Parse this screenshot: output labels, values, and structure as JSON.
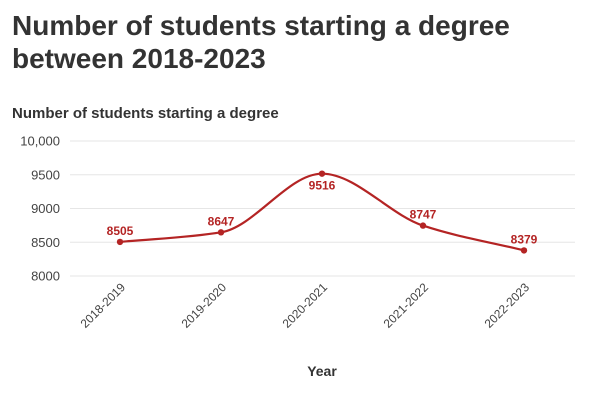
{
  "header": {
    "title": "Number of students starting a degree between 2018-2023",
    "subtitle": "Number of students starting a degree"
  },
  "colors": {
    "series": "#b42424",
    "grid": "#e6e6e6",
    "text": "#333333"
  },
  "chart_data": {
    "type": "line",
    "title": "Number of students starting a degree between 2018-2023",
    "subtitle": "Number of students starting a degree",
    "xlabel": "Year",
    "ylabel": "",
    "categories": [
      "2018-2019",
      "2019-2020",
      "2020-2021",
      "2021-2022",
      "2022-2023"
    ],
    "series": [
      {
        "values": [
          8505,
          8647,
          9516,
          8747,
          8379
        ]
      }
    ],
    "yticks": [
      "10,000",
      "9500",
      "9000",
      "8500",
      "8000"
    ],
    "ylim": [
      8000,
      10000
    ],
    "smooth": true,
    "grid": true,
    "legend": "none"
  }
}
